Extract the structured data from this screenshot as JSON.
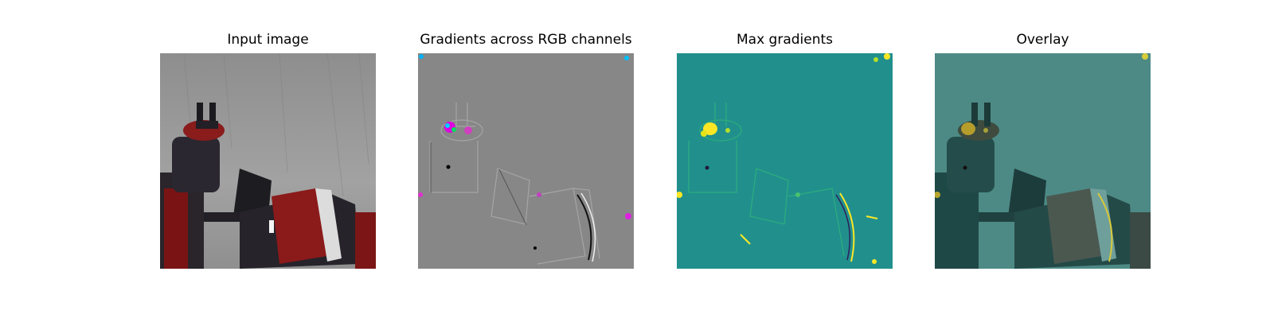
{
  "figure": {
    "panels": [
      {
        "title": "Input image"
      },
      {
        "title": "Gradients across RGB channels"
      },
      {
        "title": "Max gradients"
      },
      {
        "title": "Overlay"
      }
    ]
  },
  "colors": {
    "background": "#ffffff",
    "input_wall": "#9a9a9a",
    "gradient_neutral": "#878787",
    "max_grad_base": "#21908d",
    "max_grad_high": "#fde725",
    "overlay_base": "#4d8a86",
    "robot_red": "#8b1a1a",
    "robot_dark": "#1e1a22"
  }
}
